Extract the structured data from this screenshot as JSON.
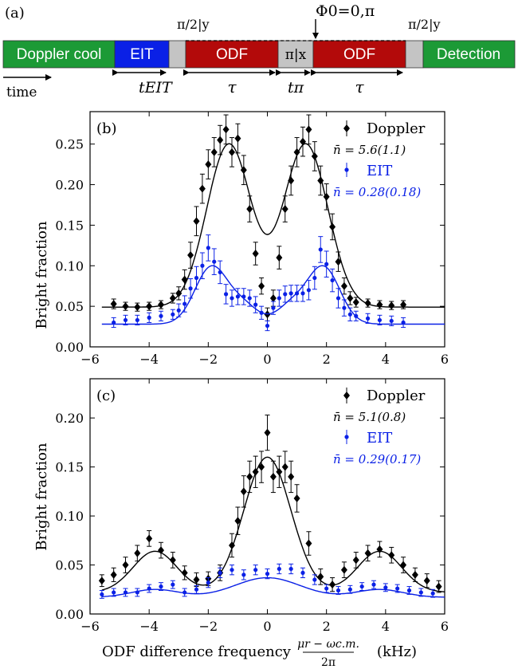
{
  "sequence": {
    "panel_label": "(a)",
    "time_label": "time",
    "phase_label": "Φ0=0,π",
    "colors": {
      "green": "#1c9a36",
      "blue": "#0a20e6",
      "red": "#b30a0a",
      "grey": "#c4c4c4"
    },
    "segments": [
      {
        "label": "Doppler cool",
        "color": "#1c9a36"
      },
      {
        "label": "EIT",
        "color": "#0a20e6"
      },
      {
        "label": "",
        "color": "#c4c4c4"
      },
      {
        "label": "ODF",
        "color": "#b30a0a"
      },
      {
        "label": "π|x",
        "color": "#c4c4c4"
      },
      {
        "label": "ODF",
        "color": "#b30a0a"
      },
      {
        "label": "",
        "color": "#c4c4c4"
      },
      {
        "label": "Detection",
        "color": "#1c9a36"
      }
    ],
    "pulse_labels": [
      "π/2|y",
      "π/2|y"
    ],
    "durations": [
      "tEIT",
      "τ",
      "tπ",
      "τ"
    ]
  },
  "chart_data": [
    {
      "panel_label": "(b)",
      "type": "scatter",
      "xlim": [
        -6,
        6
      ],
      "ylim": [
        0,
        0.29
      ],
      "xticks": [
        -6,
        -4,
        -2,
        0,
        2,
        4,
        6
      ],
      "yticks": [
        0.0,
        0.05,
        0.1,
        0.15,
        0.2,
        0.25
      ],
      "ytick_labels": [
        "0.00",
        "0.05",
        "0.10",
        "0.15",
        "0.20",
        "0.25"
      ],
      "xtick_labels": [
        "−6",
        "−4",
        "−2",
        "0",
        "2",
        "4",
        "6"
      ],
      "ylabel": "Bright fraction",
      "legend_position": "top-right",
      "series": [
        {
          "name": "Doppler",
          "legend_note": "n̄ = 5.6(1.1)",
          "color": "#000000",
          "marker": "diamond",
          "x": [
            -5.2,
            -4.8,
            -4.4,
            -4.0,
            -3.6,
            -3.2,
            -3.0,
            -2.8,
            -2.6,
            -2.4,
            -2.2,
            -2.0,
            -1.8,
            -1.6,
            -1.4,
            -1.2,
            -1.0,
            -0.8,
            -0.6,
            -0.4,
            -0.2,
            0.0,
            0.2,
            0.4,
            0.6,
            0.8,
            1.0,
            1.2,
            1.4,
            1.6,
            1.8,
            2.0,
            2.2,
            2.4,
            2.6,
            2.8,
            3.0,
            3.4,
            3.8,
            4.2,
            4.6
          ],
          "y": [
            0.053,
            0.05,
            0.049,
            0.05,
            0.052,
            0.06,
            0.066,
            0.083,
            0.113,
            0.155,
            0.195,
            0.225,
            0.24,
            0.255,
            0.268,
            0.24,
            0.257,
            0.218,
            0.17,
            0.115,
            0.075,
            0.04,
            0.06,
            0.11,
            0.17,
            0.205,
            0.24,
            0.253,
            0.268,
            0.235,
            0.205,
            0.185,
            0.148,
            0.105,
            0.075,
            0.06,
            0.055,
            0.054,
            0.052,
            0.051,
            0.052
          ],
          "err": [
            0.006,
            0.005,
            0.005,
            0.005,
            0.005,
            0.006,
            0.008,
            0.012,
            0.016,
            0.018,
            0.018,
            0.018,
            0.018,
            0.018,
            0.018,
            0.018,
            0.018,
            0.018,
            0.016,
            0.014,
            0.01,
            0.008,
            0.01,
            0.014,
            0.016,
            0.018,
            0.018,
            0.018,
            0.018,
            0.018,
            0.018,
            0.016,
            0.016,
            0.012,
            0.01,
            0.008,
            0.006,
            0.005,
            0.005,
            0.005,
            0.005
          ],
          "fit": {
            "baseline": 0.049,
            "peaks": [
              {
                "center": -1.3,
                "amplitude": 0.201,
                "width": 0.75
              },
              {
                "center": 1.3,
                "amplitude": 0.201,
                "width": 0.75
              }
            ]
          }
        },
        {
          "name": "EIT",
          "legend_note": "n̄ = 0.28(0.18)",
          "color": "#0a20e6",
          "marker": "circle",
          "x": [
            -5.2,
            -4.8,
            -4.4,
            -4.0,
            -3.6,
            -3.2,
            -3.0,
            -2.8,
            -2.6,
            -2.4,
            -2.2,
            -2.0,
            -1.8,
            -1.6,
            -1.4,
            -1.2,
            -1.0,
            -0.8,
            -0.6,
            -0.4,
            -0.2,
            0.0,
            0.2,
            0.4,
            0.6,
            0.8,
            1.0,
            1.2,
            1.4,
            1.6,
            1.8,
            2.0,
            2.2,
            2.4,
            2.6,
            2.8,
            3.0,
            3.4,
            3.8,
            4.2,
            4.6
          ],
          "y": [
            0.03,
            0.033,
            0.033,
            0.036,
            0.038,
            0.04,
            0.045,
            0.053,
            0.072,
            0.085,
            0.1,
            0.122,
            0.105,
            0.092,
            0.065,
            0.06,
            0.062,
            0.062,
            0.06,
            0.052,
            0.042,
            0.026,
            0.048,
            0.06,
            0.065,
            0.066,
            0.066,
            0.066,
            0.07,
            0.085,
            0.12,
            0.102,
            0.082,
            0.06,
            0.048,
            0.04,
            0.038,
            0.035,
            0.033,
            0.032,
            0.03
          ],
          "err": [
            0.006,
            0.006,
            0.006,
            0.006,
            0.006,
            0.006,
            0.008,
            0.01,
            0.012,
            0.014,
            0.016,
            0.016,
            0.016,
            0.014,
            0.012,
            0.01,
            0.01,
            0.01,
            0.01,
            0.01,
            0.008,
            0.006,
            0.008,
            0.01,
            0.01,
            0.01,
            0.01,
            0.01,
            0.012,
            0.014,
            0.016,
            0.016,
            0.014,
            0.012,
            0.01,
            0.008,
            0.006,
            0.006,
            0.006,
            0.006,
            0.006
          ],
          "fit": {
            "baseline": 0.028,
            "peaks": [
              {
                "center": -1.9,
                "amplitude": 0.07,
                "width": 0.55
              },
              {
                "center": 1.9,
                "amplitude": 0.07,
                "width": 0.55
              },
              {
                "center": -0.8,
                "amplitude": 0.022,
                "width": 0.5
              },
              {
                "center": 0.8,
                "amplitude": 0.022,
                "width": 0.5
              }
            ]
          }
        }
      ]
    },
    {
      "panel_label": "(c)",
      "type": "scatter",
      "xlim": [
        -6,
        6
      ],
      "ylim": [
        0,
        0.24
      ],
      "xticks": [
        -6,
        -4,
        -2,
        0,
        2,
        4,
        6
      ],
      "yticks": [
        0.0,
        0.05,
        0.1,
        0.15,
        0.2
      ],
      "ytick_labels": [
        "0.00",
        "0.05",
        "0.10",
        "0.15",
        "0.20"
      ],
      "xtick_labels": [
        "−6",
        "−4",
        "−2",
        "0",
        "2",
        "4",
        "6"
      ],
      "ylabel": "Bright fraction",
      "xlabel_prefix": "ODF difference frequency",
      "xlabel_numerator": "μr − ωc.m.",
      "xlabel_denominator": "2π",
      "xlabel_unit": "(kHz)",
      "legend_position": "top-right",
      "series": [
        {
          "name": "Doppler",
          "legend_note": "n̄ = 5.1(0.8)",
          "color": "#000000",
          "marker": "diamond",
          "x": [
            -5.6,
            -5.2,
            -4.8,
            -4.4,
            -4.0,
            -3.6,
            -3.2,
            -2.8,
            -2.4,
            -2.0,
            -1.6,
            -1.2,
            -1.0,
            -0.8,
            -0.6,
            -0.4,
            -0.2,
            0.0,
            0.2,
            0.4,
            0.6,
            0.8,
            1.0,
            1.4,
            1.8,
            2.2,
            2.6,
            3.0,
            3.4,
            3.8,
            4.2,
            4.6,
            5.0,
            5.4,
            5.8
          ],
          "y": [
            0.034,
            0.04,
            0.05,
            0.062,
            0.077,
            0.065,
            0.055,
            0.042,
            0.035,
            0.036,
            0.042,
            0.07,
            0.095,
            0.125,
            0.14,
            0.145,
            0.15,
            0.185,
            0.14,
            0.145,
            0.15,
            0.14,
            0.118,
            0.072,
            0.038,
            0.03,
            0.045,
            0.055,
            0.062,
            0.066,
            0.06,
            0.05,
            0.04,
            0.034,
            0.028
          ],
          "err": [
            0.006,
            0.007,
            0.008,
            0.008,
            0.008,
            0.008,
            0.008,
            0.007,
            0.007,
            0.007,
            0.008,
            0.012,
            0.014,
            0.016,
            0.016,
            0.016,
            0.016,
            0.018,
            0.016,
            0.016,
            0.016,
            0.016,
            0.014,
            0.012,
            0.008,
            0.007,
            0.008,
            0.008,
            0.008,
            0.008,
            0.008,
            0.008,
            0.007,
            0.007,
            0.006
          ],
          "fit": {
            "baseline": 0.022,
            "peaks": [
              {
                "center": 0.0,
                "amplitude": 0.138,
                "width": 0.8
              },
              {
                "center": -3.8,
                "amplitude": 0.042,
                "width": 0.75
              },
              {
                "center": 3.8,
                "amplitude": 0.042,
                "width": 0.75
              }
            ]
          }
        },
        {
          "name": "EIT",
          "legend_note": "n̄ = 0.29(0.17)",
          "color": "#0a20e6",
          "marker": "circle",
          "x": [
            -5.6,
            -5.2,
            -4.8,
            -4.4,
            -4.0,
            -3.6,
            -3.2,
            -2.8,
            -2.4,
            -2.0,
            -1.6,
            -1.2,
            -0.8,
            -0.4,
            0.0,
            0.4,
            0.8,
            1.2,
            1.6,
            2.0,
            2.4,
            2.8,
            3.2,
            3.6,
            4.0,
            4.4,
            4.8,
            5.2,
            5.6
          ],
          "y": [
            0.02,
            0.022,
            0.022,
            0.022,
            0.026,
            0.028,
            0.03,
            0.022,
            0.025,
            0.032,
            0.042,
            0.045,
            0.04,
            0.045,
            0.041,
            0.046,
            0.046,
            0.042,
            0.035,
            0.026,
            0.024,
            0.025,
            0.028,
            0.03,
            0.027,
            0.026,
            0.024,
            0.022,
            0.021
          ],
          "err": [
            0.004,
            0.004,
            0.004,
            0.004,
            0.004,
            0.004,
            0.004,
            0.004,
            0.004,
            0.005,
            0.005,
            0.005,
            0.005,
            0.005,
            0.005,
            0.005,
            0.005,
            0.005,
            0.005,
            0.004,
            0.004,
            0.004,
            0.004,
            0.004,
            0.004,
            0.004,
            0.004,
            0.004,
            0.004
          ],
          "fit": {
            "baseline": 0.017,
            "peaks": [
              {
                "center": 0.0,
                "amplitude": 0.02,
                "width": 1.1
              },
              {
                "center": -3.8,
                "amplitude": 0.008,
                "width": 0.8
              },
              {
                "center": 3.8,
                "amplitude": 0.008,
                "width": 0.8
              }
            ]
          }
        }
      ]
    }
  ]
}
